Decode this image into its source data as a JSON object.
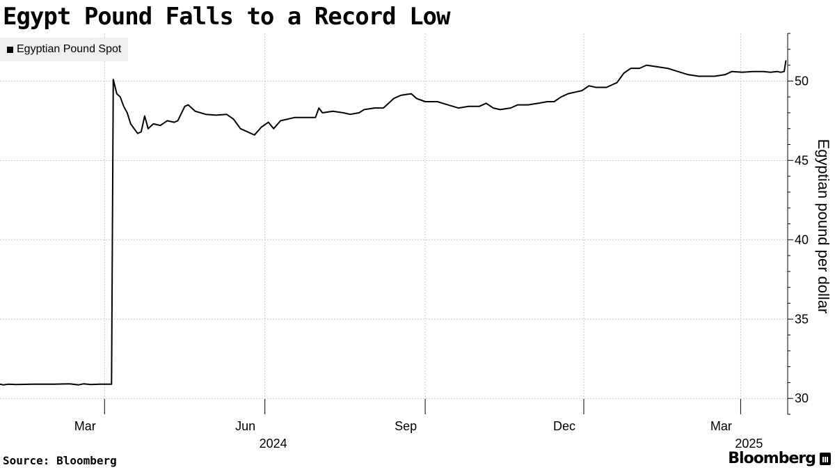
{
  "title": "Egypt Pound Falls to a Record Low",
  "source": "Source: Bloomberg",
  "brand": "Bloomberg",
  "chart_data": {
    "type": "line",
    "title": "Egypt Pound Falls to a Record Low",
    "ylabel": "Egyptian pound per dollar",
    "xlabel": "",
    "legend": {
      "position": "top-left",
      "entries": [
        "Egyptian Pound Spot"
      ]
    },
    "grid": true,
    "ylim": [
      29,
      53
    ],
    "yticks": [
      30,
      35,
      40,
      45,
      50
    ],
    "xlim": [
      "2024-01-01",
      "2025-03-28"
    ],
    "xticks": [
      {
        "date": "2024-03-01",
        "label": "Mar",
        "year": ""
      },
      {
        "date": "2024-06-01",
        "label": "Jun",
        "year": "2024"
      },
      {
        "date": "2024-09-01",
        "label": "Sep",
        "year": ""
      },
      {
        "date": "2024-12-01",
        "label": "Dec",
        "year": ""
      },
      {
        "date": "2025-03-01",
        "label": "Mar",
        "year": "2025"
      }
    ],
    "series": [
      {
        "name": "Egyptian Pound Spot",
        "color": "#000000",
        "points": [
          [
            "2024-01-01",
            30.9
          ],
          [
            "2024-01-03",
            30.85
          ],
          [
            "2024-01-06",
            30.9
          ],
          [
            "2024-01-10",
            30.88
          ],
          [
            "2024-01-20",
            30.9
          ],
          [
            "2024-02-01",
            30.9
          ],
          [
            "2024-02-10",
            30.92
          ],
          [
            "2024-02-15",
            30.85
          ],
          [
            "2024-02-18",
            30.92
          ],
          [
            "2024-02-22",
            30.88
          ],
          [
            "2024-02-27",
            30.9
          ],
          [
            "2024-03-05",
            30.9
          ],
          [
            "2024-03-06",
            50.1
          ],
          [
            "2024-03-08",
            49.2
          ],
          [
            "2024-03-10",
            49.0
          ],
          [
            "2024-03-12",
            48.4
          ],
          [
            "2024-03-14",
            48.0
          ],
          [
            "2024-03-16",
            47.3
          ],
          [
            "2024-03-18",
            47.0
          ],
          [
            "2024-03-20",
            46.7
          ],
          [
            "2024-03-22",
            46.8
          ],
          [
            "2024-03-24",
            47.8
          ],
          [
            "2024-03-26",
            47.0
          ],
          [
            "2024-03-29",
            47.3
          ],
          [
            "2024-04-02",
            47.2
          ],
          [
            "2024-04-06",
            47.5
          ],
          [
            "2024-04-10",
            47.4
          ],
          [
            "2024-04-12",
            47.5
          ],
          [
            "2024-04-16",
            48.4
          ],
          [
            "2024-04-18",
            48.5
          ],
          [
            "2024-04-22",
            48.1
          ],
          [
            "2024-04-28",
            47.9
          ],
          [
            "2024-05-04",
            47.85
          ],
          [
            "2024-05-10",
            47.9
          ],
          [
            "2024-05-14",
            47.6
          ],
          [
            "2024-05-18",
            47.0
          ],
          [
            "2024-05-22",
            46.8
          ],
          [
            "2024-05-26",
            46.6
          ],
          [
            "2024-05-30",
            47.1
          ],
          [
            "2024-06-03",
            47.4
          ],
          [
            "2024-06-06",
            47.0
          ],
          [
            "2024-06-10",
            47.5
          ],
          [
            "2024-06-14",
            47.6
          ],
          [
            "2024-06-18",
            47.7
          ],
          [
            "2024-06-22",
            47.7
          ],
          [
            "2024-06-26",
            47.7
          ],
          [
            "2024-06-30",
            47.7
          ],
          [
            "2024-07-02",
            48.3
          ],
          [
            "2024-07-04",
            48.0
          ],
          [
            "2024-07-10",
            48.1
          ],
          [
            "2024-07-16",
            48.0
          ],
          [
            "2024-07-20",
            47.9
          ],
          [
            "2024-07-25",
            48.0
          ],
          [
            "2024-07-28",
            48.2
          ],
          [
            "2024-08-03",
            48.3
          ],
          [
            "2024-08-08",
            48.3
          ],
          [
            "2024-08-14",
            48.9
          ],
          [
            "2024-08-18",
            49.1
          ],
          [
            "2024-08-24",
            49.2
          ],
          [
            "2024-08-27",
            48.9
          ],
          [
            "2024-09-01",
            48.7
          ],
          [
            "2024-09-08",
            48.7
          ],
          [
            "2024-09-14",
            48.5
          ],
          [
            "2024-09-20",
            48.3
          ],
          [
            "2024-09-26",
            48.4
          ],
          [
            "2024-10-02",
            48.4
          ],
          [
            "2024-10-06",
            48.6
          ],
          [
            "2024-10-10",
            48.3
          ],
          [
            "2024-10-14",
            48.2
          ],
          [
            "2024-10-20",
            48.3
          ],
          [
            "2024-10-24",
            48.5
          ],
          [
            "2024-10-30",
            48.5
          ],
          [
            "2024-11-05",
            48.6
          ],
          [
            "2024-11-10",
            48.7
          ],
          [
            "2024-11-14",
            48.7
          ],
          [
            "2024-11-18",
            49.0
          ],
          [
            "2024-11-22",
            49.2
          ],
          [
            "2024-11-26",
            49.3
          ],
          [
            "2024-11-30",
            49.4
          ],
          [
            "2024-12-04",
            49.7
          ],
          [
            "2024-12-08",
            49.6
          ],
          [
            "2024-12-14",
            49.6
          ],
          [
            "2024-12-20",
            49.9
          ],
          [
            "2024-12-24",
            50.5
          ],
          [
            "2024-12-28",
            50.8
          ],
          [
            "2025-01-02",
            50.8
          ],
          [
            "2025-01-06",
            51.0
          ],
          [
            "2025-01-12",
            50.9
          ],
          [
            "2025-01-18",
            50.8
          ],
          [
            "2025-01-24",
            50.6
          ],
          [
            "2025-01-30",
            50.4
          ],
          [
            "2025-02-05",
            50.3
          ],
          [
            "2025-02-10",
            50.3
          ],
          [
            "2025-02-14",
            50.3
          ],
          [
            "2025-02-20",
            50.4
          ],
          [
            "2025-02-24",
            50.6
          ],
          [
            "2025-03-02",
            50.55
          ],
          [
            "2025-03-08",
            50.6
          ],
          [
            "2025-03-14",
            50.6
          ],
          [
            "2025-03-18",
            50.55
          ],
          [
            "2025-03-22",
            50.6
          ],
          [
            "2025-03-24",
            50.55
          ],
          [
            "2025-03-26",
            50.6
          ],
          [
            "2025-03-27",
            51.3
          ]
        ]
      }
    ]
  }
}
